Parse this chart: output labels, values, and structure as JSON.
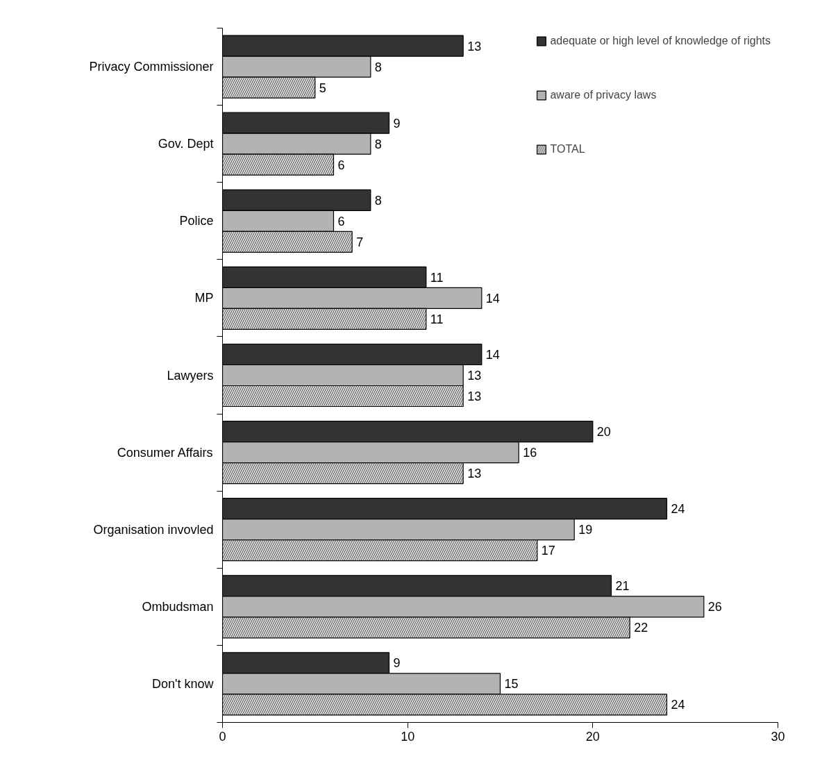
{
  "chart_data": {
    "type": "bar",
    "orientation": "horizontal",
    "categories": [
      "Privacy Commissioner",
      "Gov. Dept",
      "Police",
      "MP",
      "Lawyers",
      "Consumer Affairs",
      "Organisation invovled",
      "Ombudsman",
      "Don't know"
    ],
    "series": [
      {
        "name": "adequate or high level of knowledge of rights",
        "color": "#333333",
        "values": [
          13,
          9,
          8,
          11,
          14,
          20,
          24,
          21,
          9
        ]
      },
      {
        "name": "aware of privacy laws",
        "color": "#b3b3b3",
        "values": [
          8,
          8,
          6,
          14,
          13,
          16,
          19,
          26,
          15
        ]
      },
      {
        "name": "TOTAL",
        "color": "#d9d9d9",
        "values": [
          5,
          6,
          7,
          11,
          13,
          13,
          17,
          22,
          24
        ]
      }
    ],
    "xlim": [
      0,
      30
    ],
    "xticks": [
      0,
      10,
      20,
      30
    ],
    "grid": false,
    "legend": "top right",
    "data_labels": true
  }
}
